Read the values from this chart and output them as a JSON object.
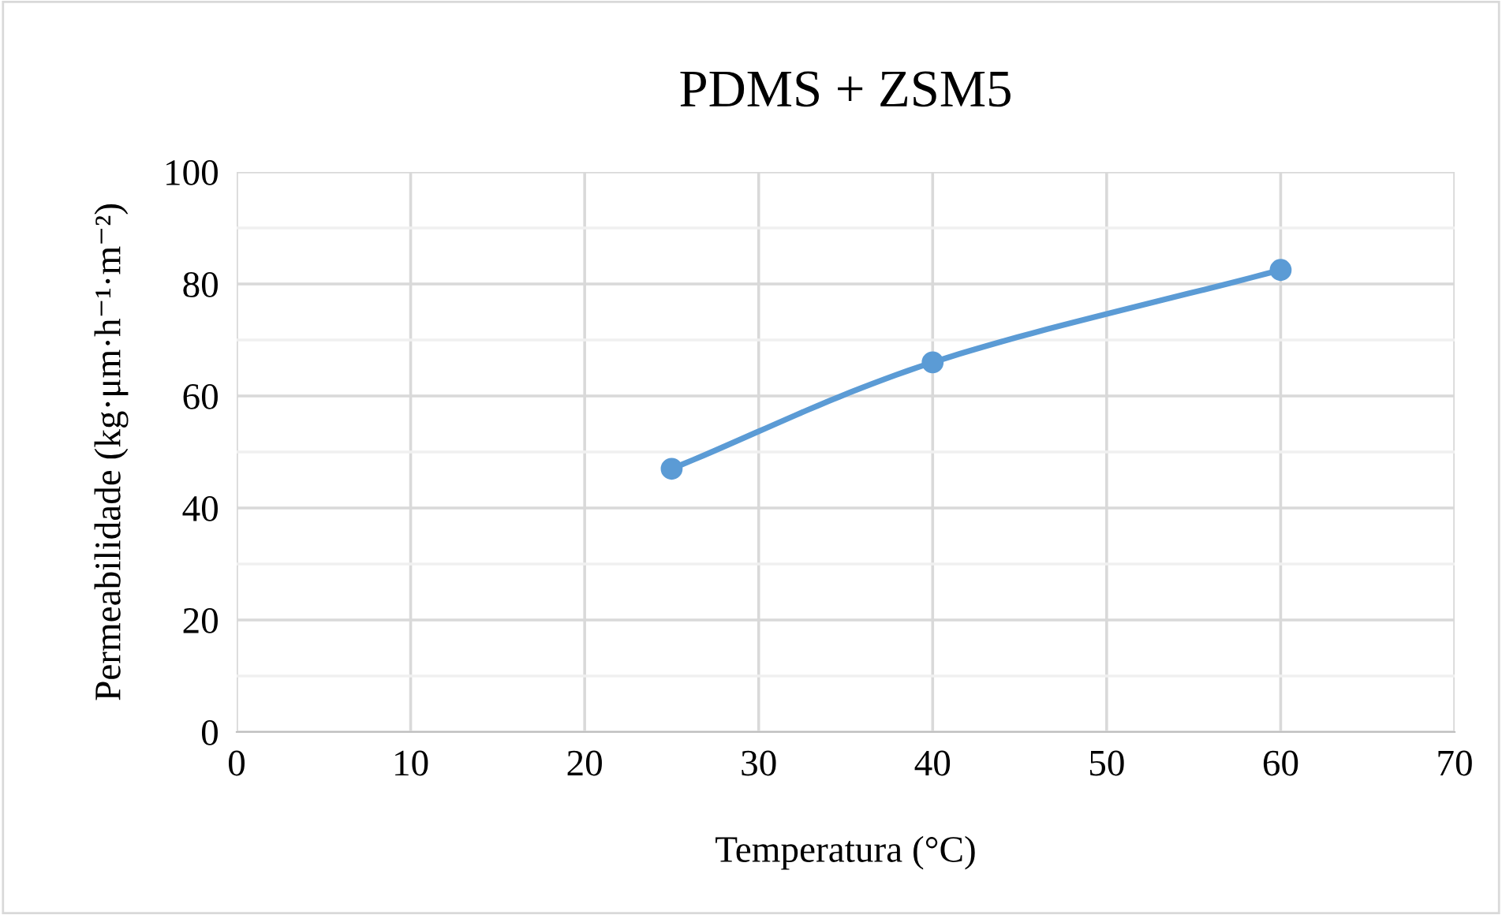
{
  "chart_data": {
    "type": "line",
    "title": "PDMS + ZSM5",
    "xlabel": "Temperatura (°C)",
    "ylabel": "Permeabilidade (kg·μm·h⁻¹·m⁻²)",
    "x": [
      25,
      40,
      60
    ],
    "series": [
      {
        "color": "#5b9bd5",
        "values": [
          47,
          66,
          82.5
        ]
      }
    ],
    "xlim": [
      0,
      70
    ],
    "xticks": [
      0,
      10,
      20,
      30,
      40,
      50,
      60,
      70
    ],
    "ylim": [
      0,
      100
    ],
    "yticks": [
      0,
      {
        "value": 10,
        "label": null
      },
      20,
      {
        "value": 30,
        "label": null
      },
      40,
      {
        "value": 50,
        "label": null
      },
      60,
      {
        "value": 70,
        "label": null
      },
      80,
      {
        "value": 90,
        "label": null
      },
      100
    ],
    "grid": true,
    "marker": "circle",
    "line_style": "solid"
  }
}
